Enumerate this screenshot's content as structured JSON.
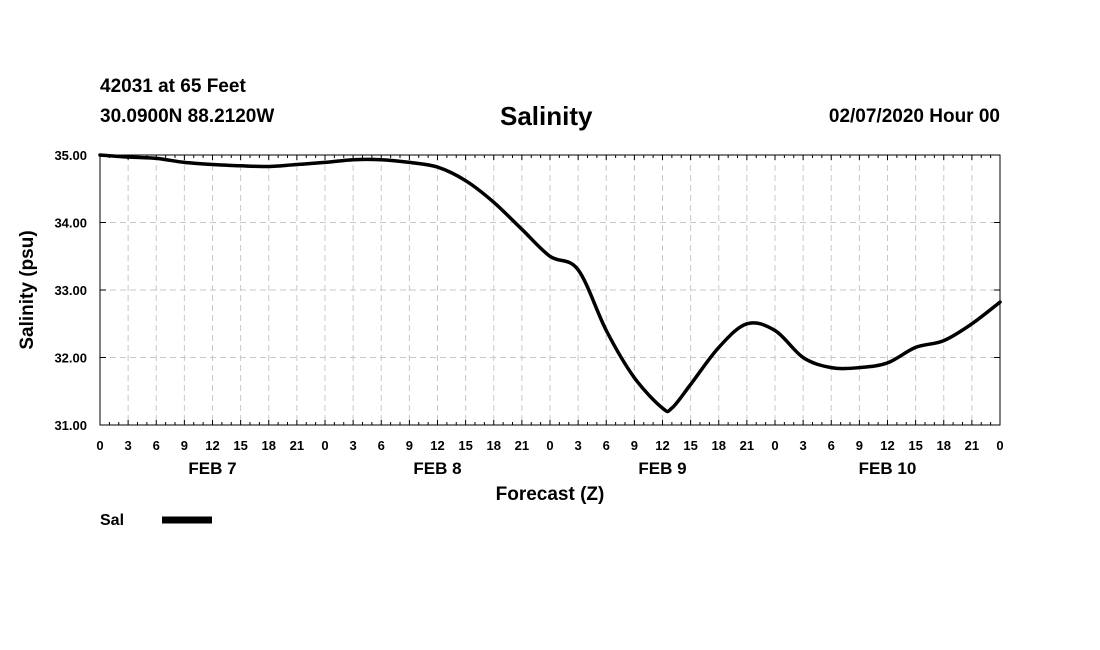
{
  "header": {
    "station": "42031 at 65 Feet",
    "coords": "30.0900N 88.2120W",
    "title": "Salinity",
    "datestamp": "02/07/2020 Hour 00"
  },
  "chart_data": {
    "type": "line",
    "title": "Salinity",
    "xlabel": "Forecast (Z)",
    "ylabel": "Salinity (psu)",
    "ylim": [
      31,
      35
    ],
    "xlim": [
      0,
      96
    ],
    "grid": true,
    "x_tick_labels": [
      "0",
      "3",
      "6",
      "9",
      "12",
      "15",
      "18",
      "21",
      "0",
      "3",
      "6",
      "9",
      "12",
      "15",
      "18",
      "21",
      "0",
      "3",
      "6",
      "9",
      "12",
      "15",
      "18",
      "21",
      "0",
      "3",
      "6",
      "9",
      "12",
      "15",
      "18",
      "21",
      "0"
    ],
    "y_tick_labels": [
      "35.00",
      "34.00",
      "33.00",
      "32.00",
      "31.00"
    ],
    "y_tick_values": [
      35,
      34,
      33,
      32,
      31
    ],
    "day_labels": [
      {
        "label": "FEB 7",
        "hour": 12
      },
      {
        "label": "FEB 8",
        "hour": 36
      },
      {
        "label": "FEB 9",
        "hour": 60
      },
      {
        "label": "FEB 10",
        "hour": 84
      }
    ],
    "series": [
      {
        "name": "Sal",
        "color": "#000000",
        "x": [
          0,
          3,
          6,
          9,
          12,
          15,
          18,
          21,
          24,
          27,
          30,
          33,
          36,
          39,
          42,
          45,
          48,
          51,
          54,
          57,
          60,
          61,
          63,
          66,
          69,
          72,
          75,
          78,
          81,
          84,
          87,
          90,
          93,
          96
        ],
        "values": [
          35.0,
          34.97,
          34.95,
          34.89,
          34.86,
          34.84,
          34.83,
          34.86,
          34.89,
          34.93,
          34.93,
          34.89,
          34.82,
          34.62,
          34.3,
          33.9,
          33.5,
          33.3,
          32.4,
          31.7,
          31.25,
          31.25,
          31.6,
          32.15,
          32.5,
          32.4,
          32.0,
          31.85,
          31.85,
          31.92,
          32.15,
          32.25,
          32.5,
          32.82
        ]
      }
    ]
  },
  "legend": {
    "label": "Sal"
  }
}
